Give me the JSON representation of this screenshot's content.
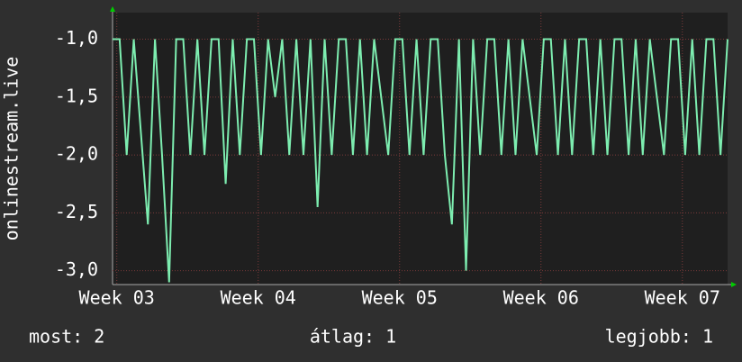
{
  "chart_data": {
    "type": "line",
    "y_label": "onlinestream.live",
    "x": [
      2.97,
      3.02,
      3.07,
      3.12,
      3.17,
      3.22,
      3.27,
      3.32,
      3.37,
      3.42,
      3.47,
      3.52,
      3.57,
      3.62,
      3.67,
      3.72,
      3.77,
      3.82,
      3.87,
      3.92,
      3.97,
      4.02,
      4.07,
      4.12,
      4.17,
      4.22,
      4.27,
      4.32,
      4.37,
      4.42,
      4.47,
      4.52,
      4.57,
      4.62,
      4.67,
      4.72,
      4.77,
      4.82,
      4.87,
      4.92,
      4.97,
      5.02,
      5.07,
      5.12,
      5.17,
      5.22,
      5.27,
      5.32,
      5.37,
      5.42,
      5.47,
      5.52,
      5.57,
      5.62,
      5.67,
      5.72,
      5.77,
      5.82,
      5.87,
      5.92,
      5.97,
      6.02,
      6.07,
      6.12,
      6.17,
      6.22,
      6.27,
      6.32,
      6.37,
      6.42,
      6.47,
      6.52,
      6.57,
      6.62,
      6.67,
      6.72,
      6.77,
      6.82,
      6.87,
      6.92,
      6.97,
      7.02,
      7.07,
      7.12,
      7.17,
      7.22,
      7.27,
      7.32
    ],
    "series": [
      {
        "name": "onlinestream.live",
        "color": "#7dedb0",
        "values": [
          -1,
          -1,
          -2,
          -1,
          -1.8,
          -2.6,
          -1,
          -2,
          -3.1,
          -1,
          -1,
          -2,
          -1,
          -2,
          -1,
          -1,
          -2.25,
          -1,
          -2,
          -1,
          -1,
          -2,
          -1,
          -1.5,
          -1,
          -2,
          -1,
          -2,
          -1,
          -2.45,
          -1,
          -2,
          -1,
          -1,
          -2,
          -1,
          -2,
          -1,
          -1.5,
          -2,
          -1,
          -1,
          -2,
          -1,
          -2,
          -1,
          -1,
          -2,
          -2.6,
          -1,
          -3.0,
          -1,
          -2,
          -1,
          -1,
          -2,
          -1,
          -2,
          -1,
          -1.5,
          -2,
          -1,
          -1,
          -2,
          -1,
          -2,
          -1,
          -1,
          -2,
          -1,
          -2,
          -1,
          -1,
          -2,
          -1,
          -2,
          -1,
          -1.5,
          -2,
          -1,
          -1,
          -2,
          -1,
          -2,
          -1,
          -1,
          -2,
          -1
        ]
      }
    ],
    "xlim": [
      2.97,
      7.32
    ],
    "xticks": [
      {
        "value": 3,
        "label": "Week 03"
      },
      {
        "value": 4,
        "label": "Week 04"
      },
      {
        "value": 5,
        "label": "Week 05"
      },
      {
        "value": 6,
        "label": "Week 06"
      },
      {
        "value": 7,
        "label": "Week 07"
      }
    ],
    "ylim": [
      -3.12,
      -0.77
    ],
    "yticks": [
      {
        "value": -1,
        "label": "-1,0"
      },
      {
        "value": -1.5,
        "label": "-1,5"
      },
      {
        "value": -2,
        "label": "-2,0"
      },
      {
        "value": -2.5,
        "label": "-2,5"
      },
      {
        "value": -3,
        "label": "-3,0"
      }
    ],
    "grid": true,
    "stats": [
      "most: 2",
      "átlag: 1",
      "legjobb: 1"
    ]
  }
}
